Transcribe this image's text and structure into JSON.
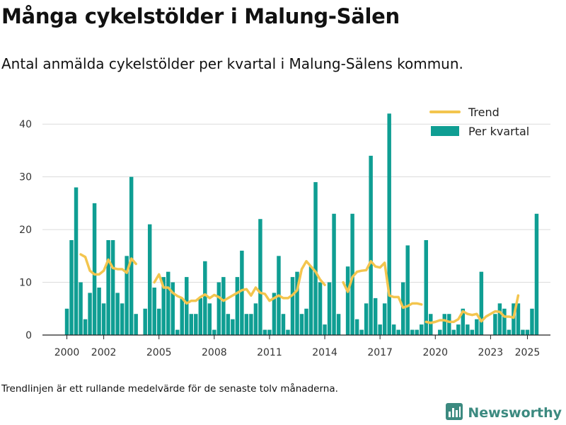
{
  "title": "Många cykelstölder i Malung-Sälen",
  "subtitle": "Antal anmälda cykelstölder per kvartal i Malung-Sälens kommun.",
  "footnote": "Trendlinjen är ett rullande medelvärde för de senaste tolv månaderna.",
  "brand": {
    "name": "Newsworthy",
    "icon": "bar-chart-logo-icon",
    "color": "#3c8a80"
  },
  "colors": {
    "bars": "#0f9e93",
    "trend": "#f3c54e",
    "grid": "#dcdcdc",
    "axis": "#222222"
  },
  "chart_data": {
    "type": "bar",
    "title": "Många cykelstölder i Malung-Sälen",
    "xlabel": "",
    "ylabel": "",
    "ylim": [
      0,
      45
    ],
    "yticks": [
      0,
      10,
      20,
      30,
      40
    ],
    "xlim": [
      1999.25,
      2026.25
    ],
    "xticks": [
      2000,
      2002,
      2005,
      2008,
      2011,
      2014,
      2017,
      2020,
      2023,
      2025
    ],
    "legend": {
      "position": "top-right",
      "entries": [
        "Trend",
        "Per kvartal"
      ]
    },
    "series": [
      {
        "name": "Per kvartal",
        "kind": "bar",
        "start_year": 2000,
        "values": [
          5,
          18,
          28,
          10,
          3,
          8,
          25,
          9,
          6,
          18,
          18,
          8,
          6,
          15,
          30,
          4,
          null,
          5,
          21,
          9,
          5,
          11,
          12,
          10,
          1,
          7,
          11,
          4,
          4,
          7,
          14,
          6,
          1,
          10,
          11,
          4,
          3,
          11,
          16,
          4,
          4,
          6,
          22,
          1,
          1,
          8,
          15,
          4,
          1,
          11,
          12,
          4,
          5,
          13,
          29,
          10,
          2,
          10,
          23,
          4,
          null,
          13,
          23,
          3,
          1,
          6,
          34,
          7,
          2,
          6,
          42,
          2,
          1,
          10,
          17,
          1,
          1,
          2,
          18,
          4,
          null,
          1,
          4,
          4,
          1,
          2,
          5,
          2,
          1,
          3,
          12,
          null,
          null,
          4,
          6,
          5,
          1,
          6,
          6,
          1,
          1,
          5,
          23
        ]
      },
      {
        "name": "Trend",
        "kind": "line",
        "points": [
          [
            [
              2000.75,
              15.3
            ],
            [
              2001.0,
              14.8
            ],
            [
              2001.25,
              12.2
            ],
            [
              2001.5,
              11.5
            ],
            [
              2001.75,
              11.5
            ],
            [
              2002.0,
              12.2
            ],
            [
              2002.25,
              14.3
            ],
            [
              2002.5,
              12.7
            ],
            [
              2002.75,
              12.5
            ],
            [
              2003.0,
              12.5
            ],
            [
              2003.25,
              11.8
            ],
            [
              2003.5,
              14.5
            ],
            [
              2003.75,
              13.5
            ]
          ],
          [
            [
              2004.75,
              10.0
            ],
            [
              2005.0,
              11.5
            ],
            [
              2005.25,
              9.0
            ],
            [
              2005.5,
              9.0
            ],
            [
              2005.75,
              8.0
            ],
            [
              2006.0,
              7.4
            ],
            [
              2006.25,
              7.0
            ],
            [
              2006.5,
              6.0
            ],
            [
              2006.75,
              6.5
            ],
            [
              2007.0,
              6.5
            ],
            [
              2007.25,
              7.2
            ],
            [
              2007.5,
              7.7
            ],
            [
              2007.75,
              7.0
            ],
            [
              2008.0,
              7.6
            ],
            [
              2008.25,
              7.2
            ],
            [
              2008.5,
              6.5
            ],
            [
              2008.75,
              7.0
            ],
            [
              2009.0,
              7.5
            ],
            [
              2009.25,
              8.0
            ],
            [
              2009.5,
              8.5
            ],
            [
              2009.75,
              8.7
            ],
            [
              2010.0,
              7.5
            ],
            [
              2010.25,
              9.0
            ],
            [
              2010.5,
              8.0
            ],
            [
              2010.75,
              7.8
            ],
            [
              2011.0,
              6.5
            ],
            [
              2011.25,
              7.0
            ],
            [
              2011.5,
              7.5
            ],
            [
              2011.75,
              7.0
            ],
            [
              2012.0,
              7.0
            ],
            [
              2012.25,
              7.6
            ],
            [
              2012.5,
              8.5
            ],
            [
              2012.75,
              12.5
            ],
            [
              2013.0,
              14.0
            ],
            [
              2013.25,
              13.0
            ],
            [
              2013.5,
              12.0
            ],
            [
              2013.75,
              10.5
            ],
            [
              2014.0,
              9.5
            ]
          ],
          [
            [
              2015.0,
              10.0
            ],
            [
              2015.25,
              8.2
            ],
            [
              2015.5,
              11.0
            ],
            [
              2015.75,
              12.0
            ],
            [
              2016.0,
              12.2
            ],
            [
              2016.25,
              12.3
            ],
            [
              2016.5,
              14.0
            ],
            [
              2016.75,
              13.0
            ],
            [
              2017.0,
              12.8
            ],
            [
              2017.25,
              13.7
            ],
            [
              2017.5,
              7.5
            ],
            [
              2017.75,
              7.2
            ],
            [
              2018.0,
              7.2
            ],
            [
              2018.25,
              5.2
            ],
            [
              2018.5,
              5.5
            ],
            [
              2018.75,
              6.0
            ],
            [
              2019.0,
              6.0
            ],
            [
              2019.25,
              5.8
            ]
          ],
          [
            [
              2019.5,
              2.5
            ],
            [
              2019.75,
              2.3
            ],
            [
              2020.0,
              2.5
            ],
            [
              2020.25,
              2.8
            ],
            [
              2020.5,
              2.8
            ],
            [
              2020.75,
              2.5
            ],
            [
              2021.0,
              2.5
            ],
            [
              2021.25,
              3.0
            ],
            [
              2021.5,
              4.5
            ],
            [
              2021.75,
              4.0
            ],
            [
              2022.0,
              3.8
            ],
            [
              2022.25,
              4.0
            ],
            [
              2022.5,
              2.6
            ],
            [
              2022.75,
              3.5
            ],
            [
              2023.0,
              4.0
            ],
            [
              2023.25,
              4.5
            ],
            [
              2023.5,
              4.4
            ],
            [
              2023.75,
              3.5
            ],
            [
              2024.0,
              3.5
            ],
            [
              2024.25,
              3.3
            ],
            [
              2024.5,
              7.5
            ]
          ]
        ]
      }
    ]
  }
}
